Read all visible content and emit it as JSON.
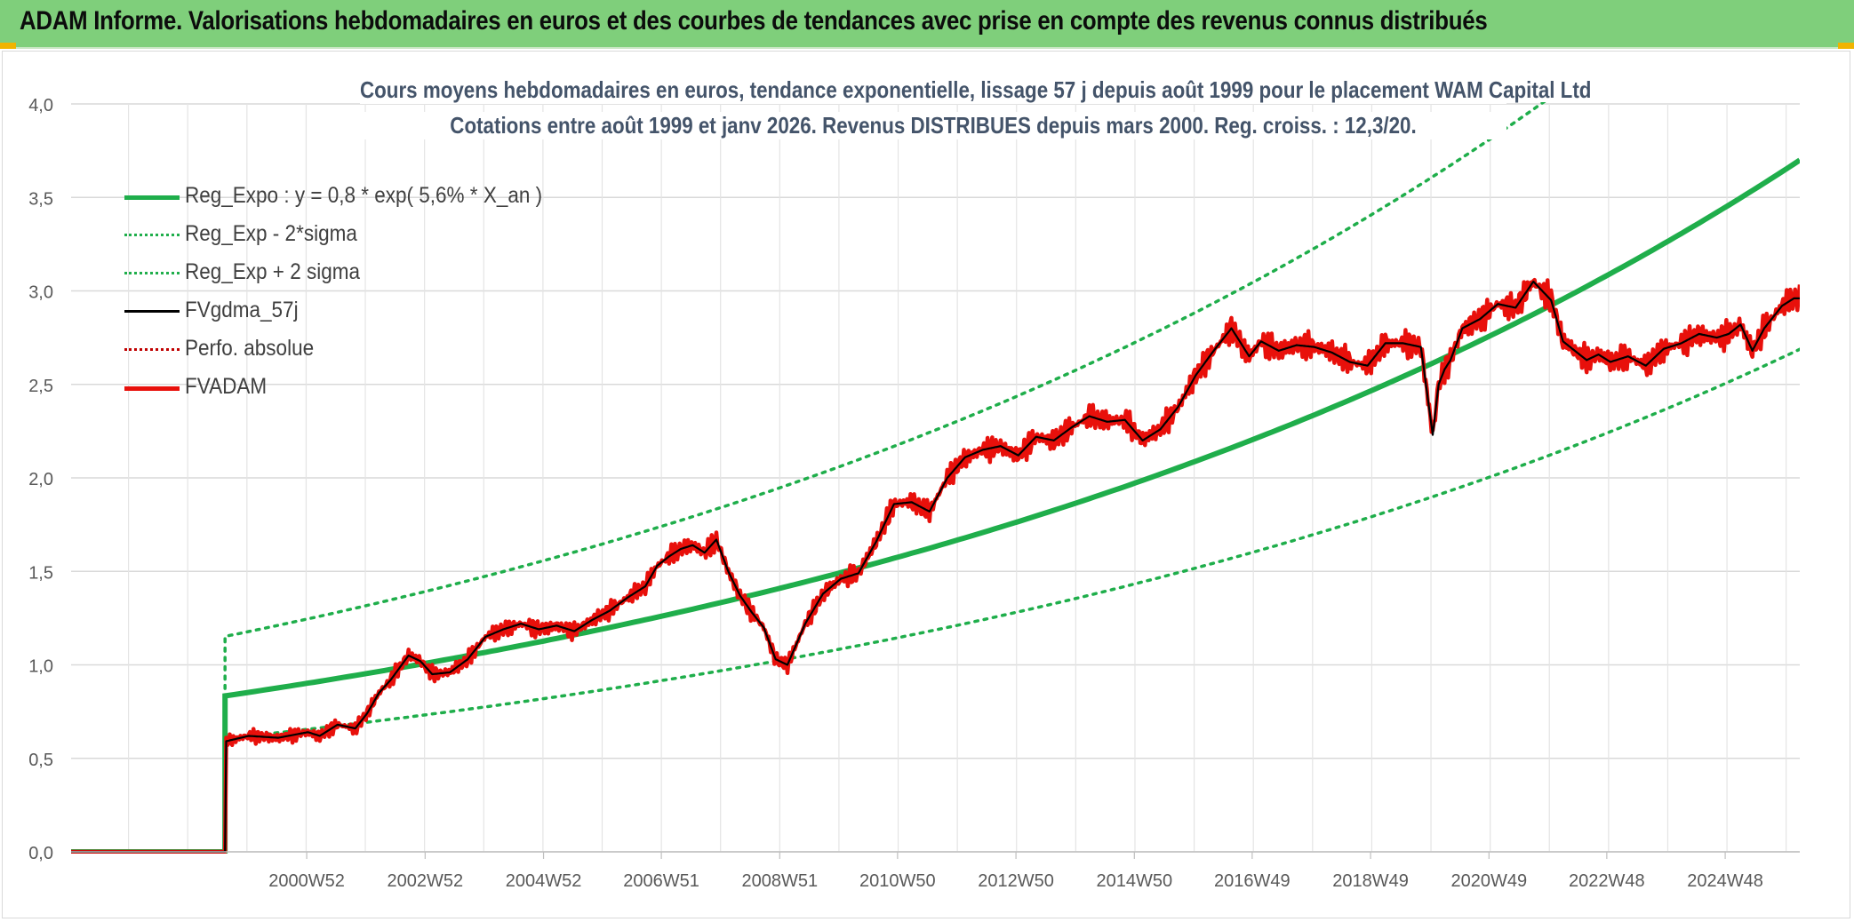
{
  "header": {
    "title": "ADAM Informe. Valorisations hebdomadaires en euros et des courbes de tendances avec prise en compte des revenus connus distribués"
  },
  "colors": {
    "banner": "#7fcf7b",
    "trend": "#1fae4b",
    "smooth": "#000000",
    "price": "#e8100b",
    "grid": "#d9d9d9",
    "axis_text": "#595959",
    "title_text": "#44546a"
  },
  "chart_data": {
    "type": "line",
    "title": "Cours moyens hebdomadaires en euros, tendance exponentielle, lissage 57 j depuis août 1999 pour le placement WAM Capital Ltd",
    "subtitle": "Cotations entre août 1999 et janv 2026. Revenus DISTRIBUES depuis mars 2000. Reg. croiss. : 12,3/20.",
    "xlabel": "",
    "ylabel": "",
    "ylim": [
      0,
      4
    ],
    "yticks": [
      "0,0",
      "0,5",
      "1,0",
      "1,5",
      "2,0",
      "2,5",
      "3,0",
      "3,5",
      "4,0"
    ],
    "xticks": [
      "2000W52",
      "2002W52",
      "2004W52",
      "2006W51",
      "2008W51",
      "2010W50",
      "2012W50",
      "2014W50",
      "2016W49",
      "2018W49",
      "2020W49",
      "2022W48",
      "2024W48"
    ],
    "xticks_year": [
      2000.98,
      2002.98,
      2004.98,
      2006.97,
      2008.97,
      2010.96,
      2012.96,
      2014.96,
      2016.95,
      2018.95,
      2020.95,
      2022.94,
      2024.94
    ],
    "xlim_year": [
      1997.0,
      2026.2
    ],
    "start_year": 1999.6,
    "grid": true,
    "legend_position": "top-left",
    "series": [
      {
        "name": "Reg_Expo : y = 0,8 * exp( 5,6% *  X_an )",
        "style": "solid-thick",
        "color": "#1fae4b",
        "formula": {
          "a": 0.834,
          "rate": 0.056
        }
      },
      {
        "name": "Reg_Exp - 2*sigma",
        "style": "dotted",
        "color": "#1fae4b",
        "formula": {
          "a": 0.606,
          "rate": 0.056
        }
      },
      {
        "name": "Reg_Exp + 2 sigma",
        "style": "dotted",
        "color": "#1fae4b",
        "formula": {
          "a": 1.152,
          "rate": 0.056
        }
      },
      {
        "name": "FVgdma_57j",
        "style": "solid",
        "color": "#000000"
      },
      {
        "name": "Perfo. absolue",
        "style": "dotted",
        "color": "#c00000"
      },
      {
        "name": "FVADAM",
        "style": "solid-thick",
        "color": "#e8100b",
        "x": [
          1997.0,
          1999.55,
          1999.6,
          2000.0,
          2000.5,
          2001.0,
          2001.2,
          2001.5,
          2001.8,
          2002.0,
          2002.2,
          2002.4,
          2002.7,
          2002.9,
          2003.1,
          2003.4,
          2003.7,
          2004.0,
          2004.3,
          2004.6,
          2004.9,
          2005.2,
          2005.5,
          2005.8,
          2006.1,
          2006.4,
          2006.7,
          2006.9,
          2007.1,
          2007.3,
          2007.5,
          2007.7,
          2007.9,
          2008.1,
          2008.3,
          2008.5,
          2008.7,
          2008.9,
          2009.1,
          2009.4,
          2009.7,
          2010.0,
          2010.3,
          2010.6,
          2010.9,
          2011.2,
          2011.5,
          2011.8,
          2012.1,
          2012.4,
          2012.7,
          2013.0,
          2013.3,
          2013.6,
          2013.9,
          2014.2,
          2014.5,
          2014.8,
          2015.1,
          2015.4,
          2015.7,
          2016.0,
          2016.3,
          2016.6,
          2016.9,
          2017.1,
          2017.4,
          2017.7,
          2018.0,
          2018.3,
          2018.6,
          2018.9,
          2019.2,
          2019.5,
          2019.8,
          2020.0,
          2020.1,
          2020.2,
          2020.3,
          2020.5,
          2020.8,
          2021.1,
          2021.4,
          2021.7,
          2022.0,
          2022.2,
          2022.4,
          2022.6,
          2022.8,
          2023.0,
          2023.3,
          2023.6,
          2023.9,
          2024.2,
          2024.5,
          2024.8,
          2025.0,
          2025.2,
          2025.4,
          2025.6,
          2025.9,
          2026.1
        ],
        "y": [
          0.0,
          0.0,
          0.59,
          0.62,
          0.61,
          0.64,
          0.62,
          0.68,
          0.66,
          0.74,
          0.85,
          0.92,
          1.05,
          1.02,
          0.95,
          0.96,
          1.03,
          1.15,
          1.19,
          1.22,
          1.19,
          1.21,
          1.18,
          1.24,
          1.29,
          1.36,
          1.42,
          1.53,
          1.58,
          1.62,
          1.64,
          1.6,
          1.67,
          1.5,
          1.37,
          1.28,
          1.2,
          1.03,
          1.0,
          1.22,
          1.38,
          1.46,
          1.49,
          1.66,
          1.86,
          1.87,
          1.82,
          2.0,
          2.11,
          2.15,
          2.17,
          2.12,
          2.22,
          2.2,
          2.27,
          2.33,
          2.3,
          2.31,
          2.2,
          2.26,
          2.38,
          2.55,
          2.68,
          2.8,
          2.65,
          2.73,
          2.68,
          2.71,
          2.7,
          2.67,
          2.62,
          2.6,
          2.72,
          2.72,
          2.7,
          2.23,
          2.5,
          2.58,
          2.63,
          2.8,
          2.85,
          2.93,
          2.91,
          3.05,
          2.95,
          2.73,
          2.68,
          2.63,
          2.66,
          2.62,
          2.65,
          2.6,
          2.69,
          2.72,
          2.77,
          2.75,
          2.77,
          2.82,
          2.68,
          2.8,
          2.92,
          2.96
        ]
      }
    ]
  }
}
